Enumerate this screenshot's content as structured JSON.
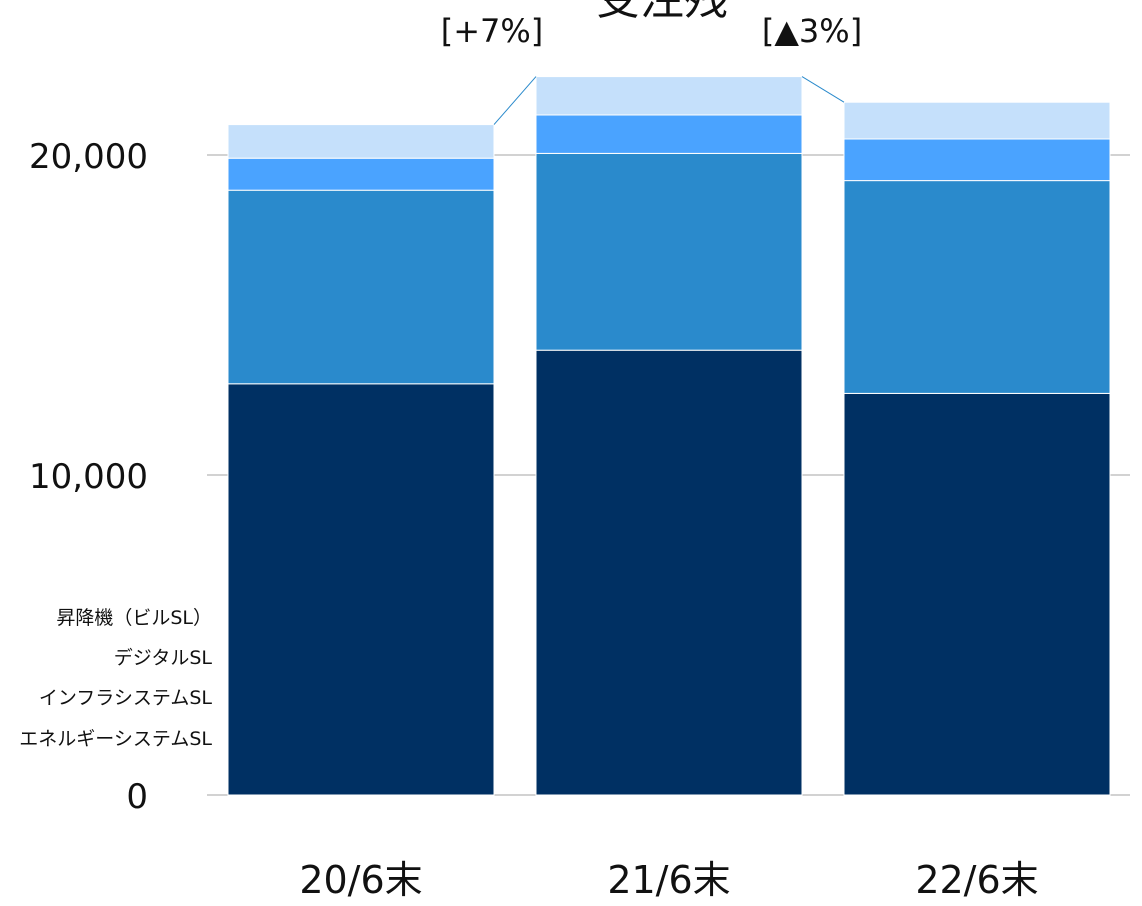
{
  "chart_data": {
    "type": "bar",
    "stacked": true,
    "title": "受注残",
    "categories": [
      "20/6末",
      "21/6末",
      "22/6末"
    ],
    "series": [
      {
        "name": "エネルギーシステムSL",
        "color": "#003063",
        "values": [
          12850,
          13900,
          12550
        ]
      },
      {
        "name": "インフラシステムSL",
        "color": "#2a8acc",
        "values": [
          6050,
          6150,
          6650
        ]
      },
      {
        "name": "デジタルSL",
        "color": "#4aa3ff",
        "values": [
          1000,
          1200,
          1300
        ]
      },
      {
        "name": "昇降機（ビルSL）",
        "color": "#c5e0fb",
        "values": [
          1050,
          1200,
          1150
        ]
      }
    ],
    "y_ticks": [
      "0",
      "10,000",
      "20,000"
    ],
    "y_tick_values": [
      0,
      10000,
      20000
    ],
    "ylim": [
      0,
      23000
    ],
    "changes": [
      "[+7%]",
      "[▲3%]"
    ],
    "grid": true,
    "legend": "left"
  }
}
